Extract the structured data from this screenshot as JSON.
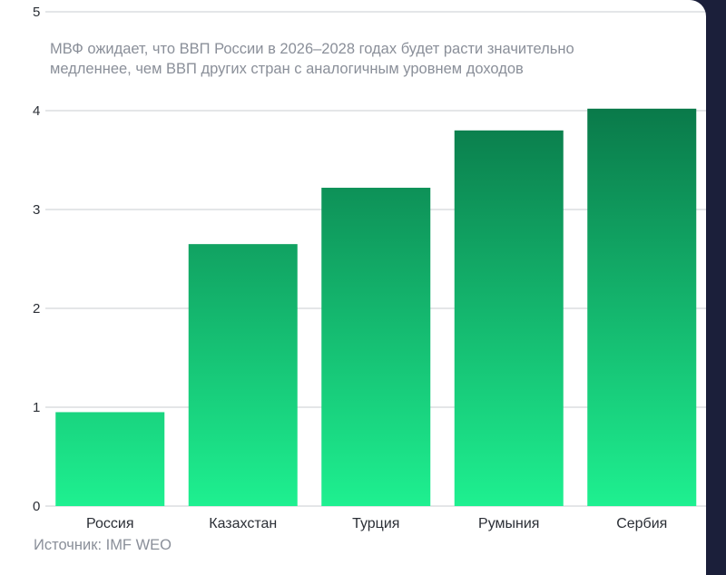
{
  "chart_data": {
    "type": "bar",
    "title": "МВФ ожидает, что ВВП России в 2026–2028 годах будет расти значительно медленнее, чем ВВП других стран с аналогичным уровнем доходов",
    "categories": [
      "Россия",
      "Казахстан",
      "Турция",
      "Румыния",
      "Сербия"
    ],
    "values": [
      0.95,
      2.65,
      3.22,
      3.8,
      4.02
    ],
    "ylim": [
      0,
      5
    ],
    "yticks": [
      0,
      1,
      2,
      3,
      4,
      5
    ],
    "grid": true,
    "colors": {
      "bar_top": "#0a7a4a",
      "bar_bottom": "#1ef090",
      "grid": "#c8ccd2",
      "background": "#ffffff",
      "frame": "#1b1f3a"
    }
  },
  "subtitle_lines": [
    "МВФ ожидает, что ВВП России в 2026–2028 годах будет расти значительно",
    "медленнее, чем ВВП других стран с аналогичным уровнем доходов"
  ],
  "source": "Источник: IMF WEO"
}
